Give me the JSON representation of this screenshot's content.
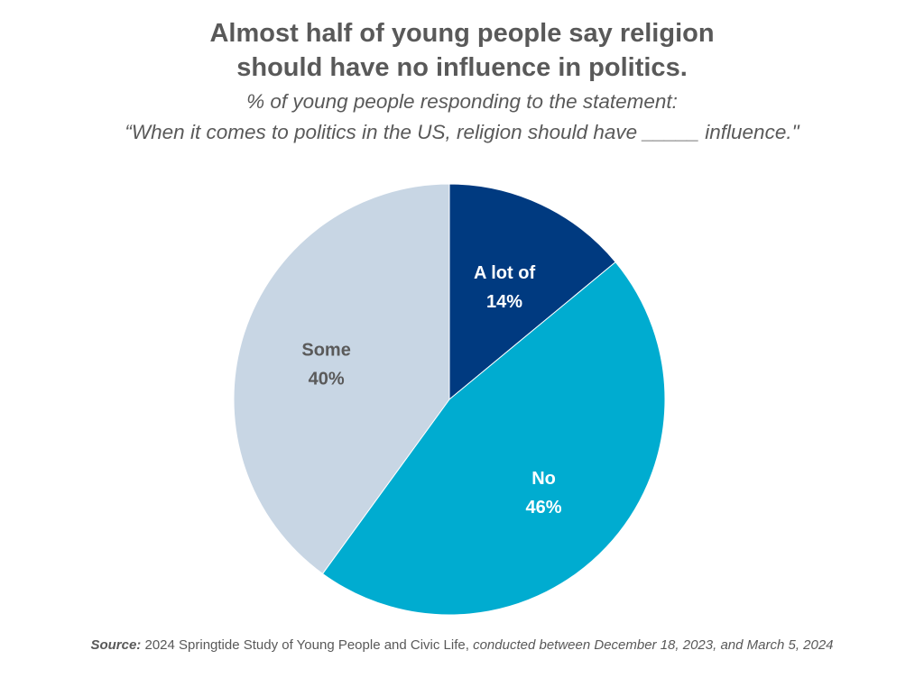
{
  "title": {
    "line1": "Almost half of young people say religion",
    "line2": "should have no influence in politics."
  },
  "subtitle": {
    "line1": "% of young people responding to the statement:",
    "line2": "“When it comes to politics in the US, religion should have _____ influence.\""
  },
  "source": {
    "label": "Source:",
    "study": " 2024 Springtide Study of Young People and Civic Life,",
    "period": " conducted between December 18, 2023, and March 5, 2024"
  },
  "chart_data": {
    "type": "pie",
    "slices": [
      {
        "label": "A lot of",
        "value": 14,
        "display": "14%",
        "color": "#003a80",
        "text_color": "#ffffff"
      },
      {
        "label": "No",
        "value": 46,
        "display": "46%",
        "color": "#00acd0",
        "text_color": "#ffffff"
      },
      {
        "label": "Some",
        "value": 40,
        "display": "40%",
        "color": "#c8d6e4",
        "text_color": "#5a5a5a"
      }
    ],
    "start": "12 o'clock",
    "direction": "clockwise"
  }
}
